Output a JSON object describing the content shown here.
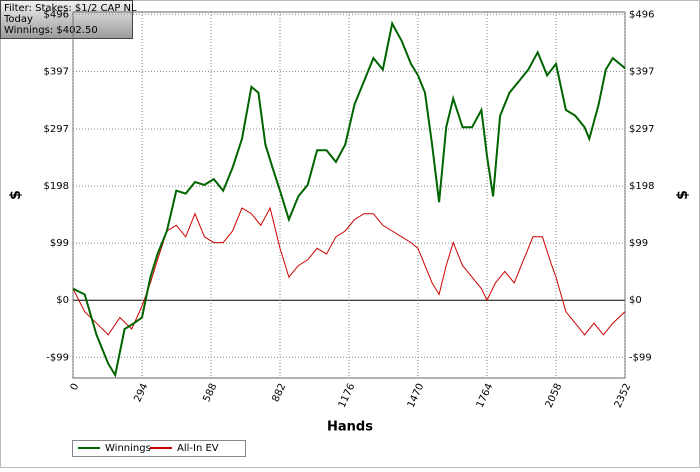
{
  "chart_data": {
    "type": "line",
    "filter_lines": [
      "Filter: Stakes: $1/2 CAP NL",
      "Today",
      "Winnings: $402.50"
    ],
    "x_label": "Hands",
    "y_label": "$",
    "y2_label": "$",
    "xlim": [
      0,
      2352
    ],
    "xticks": [
      0,
      294,
      588,
      882,
      1176,
      1470,
      1764,
      2058,
      2352
    ],
    "ylim": [
      -135,
      500
    ],
    "yticks": [
      {
        "value": -99,
        "label": "-$99"
      },
      {
        "value": 0,
        "label": "$0"
      },
      {
        "value": 99,
        "label": "$99"
      },
      {
        "value": 198,
        "label": "$198"
      },
      {
        "value": 297,
        "label": "$297"
      },
      {
        "value": 397,
        "label": "$397"
      },
      {
        "value": 496,
        "label": "$496"
      }
    ],
    "grid": true,
    "legend": "bottom-left",
    "series": [
      {
        "name": "Winnings",
        "color": "#006400",
        "x": [
          0,
          50,
          100,
          150,
          180,
          220,
          260,
          294,
          330,
          360,
          400,
          440,
          480,
          520,
          560,
          600,
          640,
          680,
          720,
          760,
          790,
          820,
          850,
          882,
          920,
          960,
          1000,
          1040,
          1080,
          1120,
          1160,
          1200,
          1240,
          1280,
          1320,
          1360,
          1400,
          1440,
          1470,
          1500,
          1530,
          1560,
          1590,
          1620,
          1660,
          1700,
          1740,
          1764,
          1790,
          1820,
          1860,
          1900,
          1940,
          1980,
          2020,
          2058,
          2100,
          2140,
          2180,
          2200,
          2240,
          2270,
          2300,
          2352
        ],
        "values": [
          20,
          10,
          -60,
          -110,
          -130,
          -50,
          -40,
          -30,
          40,
          80,
          120,
          190,
          185,
          205,
          200,
          210,
          190,
          230,
          280,
          370,
          360,
          270,
          230,
          190,
          140,
          180,
          200,
          260,
          260,
          240,
          270,
          340,
          380,
          420,
          400,
          480,
          450,
          410,
          390,
          360,
          270,
          170,
          300,
          350,
          300,
          300,
          330,
          250,
          180,
          320,
          360,
          380,
          400,
          430,
          390,
          410,
          330,
          320,
          300,
          280,
          340,
          400,
          420,
          402.5
        ]
      },
      {
        "name": "All-In EV",
        "color": "#cc0000",
        "x": [
          0,
          50,
          100,
          150,
          200,
          250,
          294,
          330,
          360,
          400,
          440,
          480,
          520,
          560,
          600,
          640,
          680,
          720,
          760,
          800,
          840,
          882,
          920,
          960,
          1000,
          1040,
          1080,
          1120,
          1160,
          1200,
          1240,
          1280,
          1320,
          1360,
          1400,
          1440,
          1470,
          1500,
          1530,
          1560,
          1590,
          1620,
          1660,
          1700,
          1740,
          1764,
          1800,
          1840,
          1880,
          1920,
          1960,
          2000,
          2040,
          2058,
          2100,
          2140,
          2180,
          2220,
          2260,
          2300,
          2352
        ],
        "values": [
          20,
          -20,
          -40,
          -60,
          -30,
          -50,
          -10,
          30,
          70,
          120,
          130,
          110,
          150,
          110,
          100,
          100,
          120,
          160,
          150,
          130,
          160,
          90,
          40,
          60,
          70,
          90,
          80,
          110,
          120,
          140,
          150,
          150,
          130,
          120,
          110,
          100,
          90,
          60,
          30,
          10,
          60,
          100,
          60,
          40,
          20,
          0,
          30,
          50,
          30,
          70,
          110,
          110,
          60,
          40,
          -20,
          -40,
          -60,
          -40,
          -60,
          -40,
          -20
        ]
      }
    ]
  }
}
